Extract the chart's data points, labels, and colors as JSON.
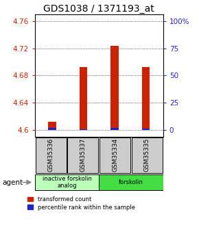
{
  "title": "GDS1038 / 1371193_at",
  "samples": [
    "GSM35336",
    "GSM35337",
    "GSM35334",
    "GSM35335"
  ],
  "red_values": [
    4.612,
    4.692,
    4.724,
    4.692
  ],
  "blue_values": [
    4.603,
    4.601,
    4.603,
    4.602
  ],
  "ylim": [
    4.59,
    4.77
  ],
  "ybase": 4.6,
  "yticks_left": [
    4.6,
    4.64,
    4.68,
    4.72,
    4.76
  ],
  "ytick_labels_right": [
    "0",
    "25",
    "50",
    "75",
    "100%"
  ],
  "groups": [
    {
      "label": "inactive forskolin\nanalog",
      "color": "#bbffbb",
      "cols": [
        0,
        1
      ]
    },
    {
      "label": "forskolin",
      "color": "#44dd44",
      "cols": [
        2,
        3
      ]
    }
  ],
  "bar_width": 0.25,
  "red_color": "#cc2200",
  "blue_color": "#2222cc",
  "title_fontsize": 10,
  "tick_fontsize": 7.5,
  "background_color": "#ffffff",
  "left_tick_color": "#cc2200",
  "right_tick_color": "#2222cc",
  "sample_box_color": "#cccccc",
  "agent_arrow_color": "#888888"
}
